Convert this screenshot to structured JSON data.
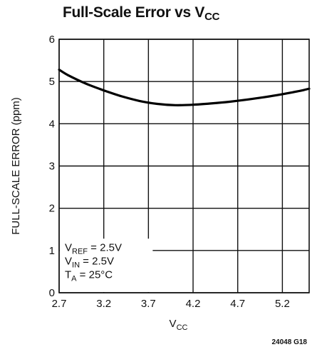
{
  "chart_data": {
    "type": "line",
    "title": {
      "main": "Full-Scale Error vs V",
      "sub": "CC"
    },
    "xlabel": {
      "main": "V",
      "sub": "CC"
    },
    "ylabel": "FULL-SCALE ERROR (ppm)",
    "xlim": [
      2.7,
      5.5
    ],
    "ylim": [
      0,
      6
    ],
    "x_ticks": [
      "2.7",
      "3.2",
      "3.7",
      "4.2",
      "4.7",
      "5.2"
    ],
    "y_ticks": [
      "0",
      "1",
      "2",
      "3",
      "4",
      "5",
      "6"
    ],
    "grid": true,
    "series": [
      {
        "x": [
          2.7,
          2.8,
          3.0,
          3.2,
          3.4,
          3.6,
          3.8,
          4.0,
          4.2,
          4.4,
          4.6,
          4.8,
          5.0,
          5.2,
          5.4,
          5.5
        ],
        "y": [
          5.28,
          5.15,
          4.95,
          4.79,
          4.65,
          4.54,
          4.47,
          4.44,
          4.45,
          4.48,
          4.52,
          4.57,
          4.63,
          4.7,
          4.78,
          4.83
        ]
      }
    ],
    "annotations": [
      {
        "main": "V",
        "sub": "REF",
        "rest": " = 2.5V"
      },
      {
        "main": "V",
        "sub": "IN",
        "rest": " = 2.5V"
      },
      {
        "main": "T",
        "sub": "A",
        "rest": " = 25°C"
      }
    ],
    "figure_id": "24048 G18"
  }
}
